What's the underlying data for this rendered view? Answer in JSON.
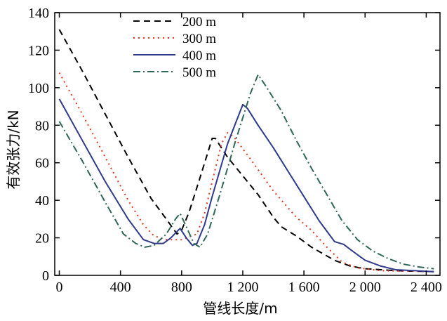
{
  "chart_data": {
    "type": "line",
    "xlabel": "管线长度/m",
    "ylabel": "有效张力/kN",
    "xlim": [
      -30,
      2490
    ],
    "ylim": [
      0,
      140
    ],
    "xticks": [
      0,
      400,
      800,
      1200,
      1600,
      2000,
      2400
    ],
    "xtick_labels": [
      "0",
      "400",
      "800",
      "1 200",
      "1 600",
      "2 000",
      "2 400"
    ],
    "yticks": [
      0,
      20,
      40,
      60,
      80,
      100,
      120,
      140
    ],
    "ytick_labels": [
      "0",
      "20",
      "40",
      "60",
      "80",
      "100",
      "120",
      "140"
    ],
    "grid": false,
    "legend_position": "top-center",
    "series": [
      {
        "name": "200 m",
        "color": "#000000",
        "dash": "9,6",
        "points": [
          [
            0,
            131
          ],
          [
            150,
            109
          ],
          [
            300,
            86
          ],
          [
            450,
            63
          ],
          [
            600,
            41
          ],
          [
            700,
            30
          ],
          [
            770,
            22
          ],
          [
            800,
            24
          ],
          [
            850,
            34
          ],
          [
            920,
            52
          ],
          [
            1000,
            73
          ],
          [
            1020,
            73
          ],
          [
            1100,
            63
          ],
          [
            1200,
            53
          ],
          [
            1300,
            43
          ],
          [
            1400,
            31
          ],
          [
            1450,
            26
          ],
          [
            1550,
            21
          ],
          [
            1650,
            15
          ],
          [
            1800,
            8
          ],
          [
            1900,
            5
          ],
          [
            2000,
            3.5
          ],
          [
            2200,
            2.5
          ],
          [
            2450,
            2
          ]
        ]
      },
      {
        "name": "300 m",
        "color": "#e8331f",
        "dash": "2,5",
        "points": [
          [
            0,
            108
          ],
          [
            150,
            86
          ],
          [
            300,
            63
          ],
          [
            450,
            40
          ],
          [
            550,
            27
          ],
          [
            620,
            21
          ],
          [
            700,
            19
          ],
          [
            800,
            19
          ],
          [
            900,
            22
          ],
          [
            950,
            33
          ],
          [
            1000,
            50
          ],
          [
            1060,
            70
          ],
          [
            1100,
            76
          ],
          [
            1140,
            74
          ],
          [
            1250,
            62
          ],
          [
            1400,
            45
          ],
          [
            1550,
            31
          ],
          [
            1650,
            24
          ],
          [
            1750,
            15
          ],
          [
            1850,
            7
          ],
          [
            1950,
            4
          ],
          [
            2100,
            2.5
          ],
          [
            2450,
            2
          ]
        ]
      },
      {
        "name": "400 m",
        "color": "#2e3a8c",
        "dash": "",
        "points": [
          [
            0,
            94
          ],
          [
            150,
            72
          ],
          [
            300,
            50
          ],
          [
            450,
            30
          ],
          [
            550,
            19
          ],
          [
            620,
            17
          ],
          [
            680,
            17
          ],
          [
            730,
            20
          ],
          [
            790,
            25
          ],
          [
            830,
            20
          ],
          [
            870,
            16
          ],
          [
            900,
            17
          ],
          [
            950,
            27
          ],
          [
            1000,
            42
          ],
          [
            1100,
            70
          ],
          [
            1200,
            91
          ],
          [
            1230,
            89
          ],
          [
            1300,
            80
          ],
          [
            1400,
            68
          ],
          [
            1500,
            55
          ],
          [
            1600,
            42
          ],
          [
            1700,
            29
          ],
          [
            1800,
            18
          ],
          [
            1860,
            16.5
          ],
          [
            1900,
            14
          ],
          [
            2000,
            8
          ],
          [
            2100,
            5
          ],
          [
            2200,
            3
          ],
          [
            2450,
            2
          ]
        ]
      },
      {
        "name": "500 m",
        "color": "#2e6657",
        "dash": "10,4,2,4",
        "points": [
          [
            0,
            82
          ],
          [
            150,
            61
          ],
          [
            300,
            39
          ],
          [
            420,
            22
          ],
          [
            500,
            17
          ],
          [
            560,
            15
          ],
          [
            620,
            16
          ],
          [
            700,
            22
          ],
          [
            760,
            30
          ],
          [
            790,
            33
          ],
          [
            830,
            26
          ],
          [
            880,
            17
          ],
          [
            920,
            15
          ],
          [
            970,
            22
          ],
          [
            1050,
            43
          ],
          [
            1150,
            71
          ],
          [
            1250,
            97
          ],
          [
            1300,
            107
          ],
          [
            1350,
            101
          ],
          [
            1450,
            88
          ],
          [
            1550,
            72
          ],
          [
            1650,
            57
          ],
          [
            1750,
            43
          ],
          [
            1850,
            29
          ],
          [
            1950,
            19
          ],
          [
            2050,
            13
          ],
          [
            2150,
            9
          ],
          [
            2250,
            6
          ],
          [
            2350,
            4.5
          ],
          [
            2450,
            3.5
          ]
        ]
      }
    ]
  }
}
